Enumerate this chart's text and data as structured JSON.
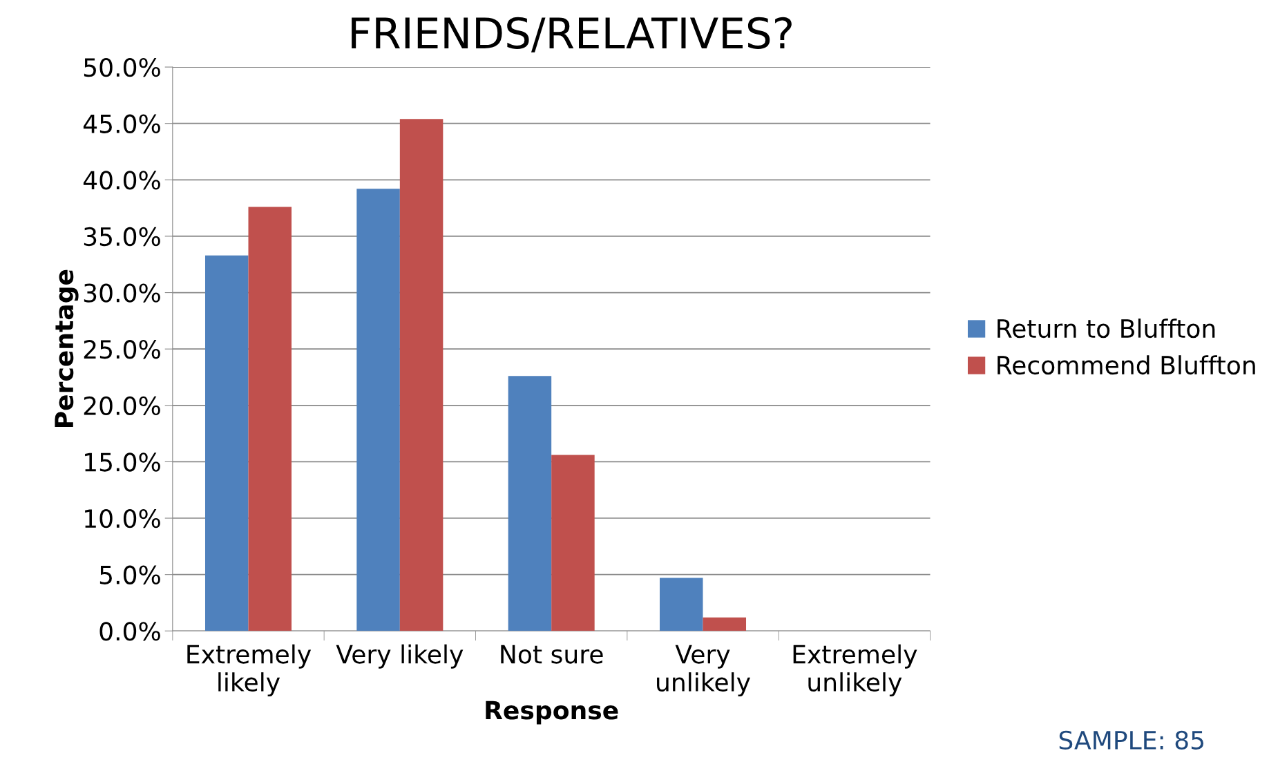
{
  "chart_data": {
    "type": "bar",
    "title": "FRIENDS/RELATIVES?",
    "xlabel": "Response",
    "ylabel": "Percentage",
    "categories": [
      "Extremely\nlikely",
      "Very likely",
      "Not sure",
      "Very\nunlikely",
      "Extremely\nunlikely"
    ],
    "series": [
      {
        "name": "Return to Bluffton",
        "color": "#4f81bd",
        "values": [
          33.3,
          39.2,
          22.6,
          4.7,
          0
        ]
      },
      {
        "name": "Recommend Bluffton",
        "color": "#c0504d",
        "values": [
          37.6,
          45.4,
          15.6,
          1.2,
          0
        ]
      }
    ],
    "ylim": [
      0,
      50
    ],
    "yticks": [
      {
        "value": 0,
        "label": "0.0%"
      },
      {
        "value": 5,
        "label": "5.0%"
      },
      {
        "value": 10,
        "label": "10.0%"
      },
      {
        "value": 15,
        "label": "15.0%"
      },
      {
        "value": 20,
        "label": "20.0%"
      },
      {
        "value": 25,
        "label": "25.0%"
      },
      {
        "value": 30,
        "label": "30.0%"
      },
      {
        "value": 35,
        "label": "35.0%"
      },
      {
        "value": 40,
        "label": "40.0%"
      },
      {
        "value": 45,
        "label": "45.0%"
      },
      {
        "value": 50,
        "label": "50.0%"
      }
    ],
    "grid": "y",
    "legend": "right",
    "annotations": [
      "SAMPLE: 85"
    ]
  }
}
